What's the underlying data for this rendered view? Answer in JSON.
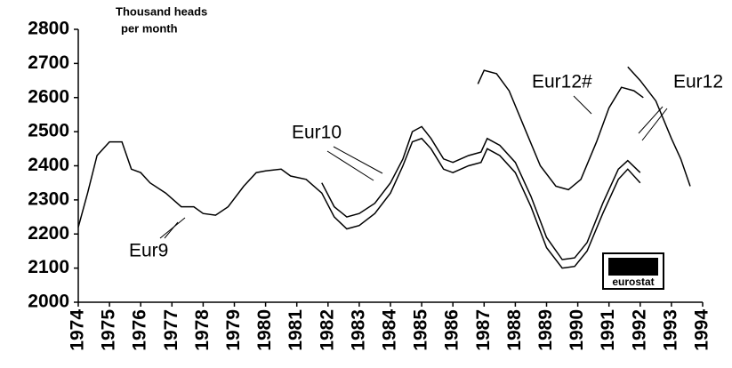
{
  "chart_data": {
    "type": "line",
    "y_label": [
      "Thousand heads",
      "per month"
    ],
    "logo": "eurostat",
    "xlim": [
      1974,
      1994
    ],
    "xticks": [
      1974,
      1975,
      1976,
      1977,
      1978,
      1979,
      1980,
      1981,
      1982,
      1983,
      1984,
      1985,
      1986,
      1987,
      1988,
      1989,
      1990,
      1991,
      1992,
      1993,
      1994
    ],
    "ylim": [
      2000,
      2800
    ],
    "yticks": [
      2000,
      2100,
      2200,
      2300,
      2400,
      2500,
      2600,
      2700,
      2800
    ],
    "series": [
      {
        "name": "Eur9",
        "color": "#000000",
        "x": [
          1974,
          1974.3,
          1974.6,
          1975,
          1975.4,
          1975.7,
          1976,
          1976.3,
          1976.8,
          1977.3,
          1977.7,
          1978,
          1978.4,
          1978.8,
          1979.3,
          1979.7,
          1980,
          1980.5,
          1980.8,
          1981.3,
          1981.8,
          1982.2,
          1982.6,
          1983,
          1983.5,
          1984,
          1984.4,
          1984.7,
          1985,
          1985.3,
          1985.7,
          1986,
          1986.5,
          1986.9,
          1987.1,
          1987.5,
          1988,
          1988.5,
          1989,
          1989.5,
          1989.9,
          1990.3,
          1990.8,
          1991.3,
          1991.6,
          1992
        ],
        "values": [
          2220,
          2320,
          2430,
          2470,
          2470,
          2390,
          2380,
          2350,
          2320,
          2280,
          2280,
          2260,
          2255,
          2280,
          2340,
          2380,
          2385,
          2390,
          2370,
          2360,
          2320,
          2250,
          2215,
          2225,
          2260,
          2320,
          2400,
          2470,
          2480,
          2450,
          2390,
          2380,
          2400,
          2410,
          2450,
          2430,
          2380,
          2280,
          2160,
          2100,
          2105,
          2150,
          2260,
          2360,
          2390,
          2350
        ]
      },
      {
        "name": "Eur10",
        "color": "#000000",
        "x": [
          1981.8,
          1982.2,
          1982.6,
          1983,
          1983.5,
          1984,
          1984.4,
          1984.7,
          1985,
          1985.3,
          1985.7,
          1986,
          1986.5,
          1986.9,
          1987.1,
          1987.5,
          1988,
          1988.5,
          1989,
          1989.5,
          1989.9,
          1990.3,
          1990.8,
          1991.3,
          1991.6,
          1992
        ],
        "values": [
          2350,
          2280,
          2250,
          2260,
          2290,
          2350,
          2420,
          2500,
          2515,
          2480,
          2420,
          2410,
          2430,
          2440,
          2480,
          2460,
          2410,
          2310,
          2190,
          2125,
          2130,
          2175,
          2290,
          2390,
          2415,
          2380
        ]
      },
      {
        "name": "Eur12#",
        "color": "#000000",
        "x": [
          1986.8,
          1987,
          1987.4,
          1987.8,
          1988.3,
          1988.8,
          1989.3,
          1989.7,
          1990.1,
          1990.6,
          1991,
          1991.4,
          1991.8,
          1992.1
        ],
        "values": [
          2640,
          2680,
          2670,
          2620,
          2510,
          2400,
          2340,
          2330,
          2360,
          2470,
          2570,
          2630,
          2620,
          2600
        ]
      },
      {
        "name": "Eur12",
        "color": "#000000",
        "x": [
          1991.6,
          1992,
          1992.5,
          1993,
          1993.3,
          1993.6
        ],
        "values": [
          2690,
          2650,
          2590,
          2480,
          2420,
          2340
        ]
      }
    ]
  }
}
